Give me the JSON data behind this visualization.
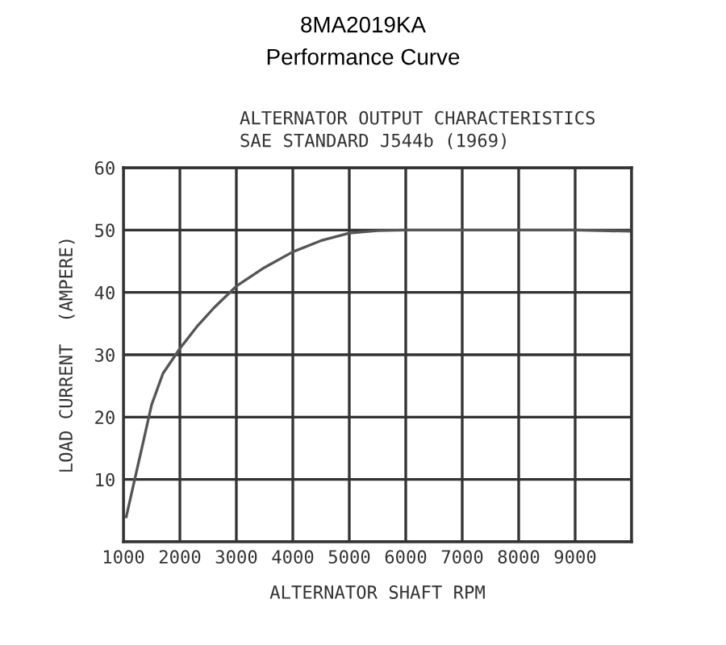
{
  "chart_data": {
    "type": "line",
    "title": "8MA2019KA",
    "subtitle": "Performance Curve",
    "annotations": [
      "ALTERNATOR OUTPUT CHARACTERISTICS",
      "SAE STANDARD J544b (1969)"
    ],
    "xlabel": "ALTERNATOR SHAFT RPM",
    "ylabel": "LOAD CURRENT  (AMPERE)",
    "x": [
      1050,
      1200,
      1350,
      1500,
      1700,
      2000,
      2300,
      2600,
      3000,
      3500,
      4000,
      4500,
      5000,
      5500,
      6000,
      7000,
      8000,
      9000,
      10000
    ],
    "series": [
      {
        "color": "#555555",
        "values": [
          4,
          10,
          16,
          22,
          27,
          31,
          34.5,
          37.5,
          41,
          44,
          46.5,
          48.3,
          49.5,
          49.9,
          50,
          50,
          50,
          50,
          49.8
        ]
      }
    ],
    "xlim": [
      1000,
      10000
    ],
    "xticks": [
      1000,
      2000,
      3000,
      4000,
      5000,
      6000,
      7000,
      8000,
      9000,
      {
        "value": 10000,
        "label": null
      }
    ],
    "ylim": [
      0,
      60
    ],
    "yticks": [
      {
        "value": 0,
        "label": null
      },
      10,
      20,
      30,
      40,
      50,
      60
    ],
    "grid": true,
    "marker": "none",
    "line_style": "solid"
  }
}
